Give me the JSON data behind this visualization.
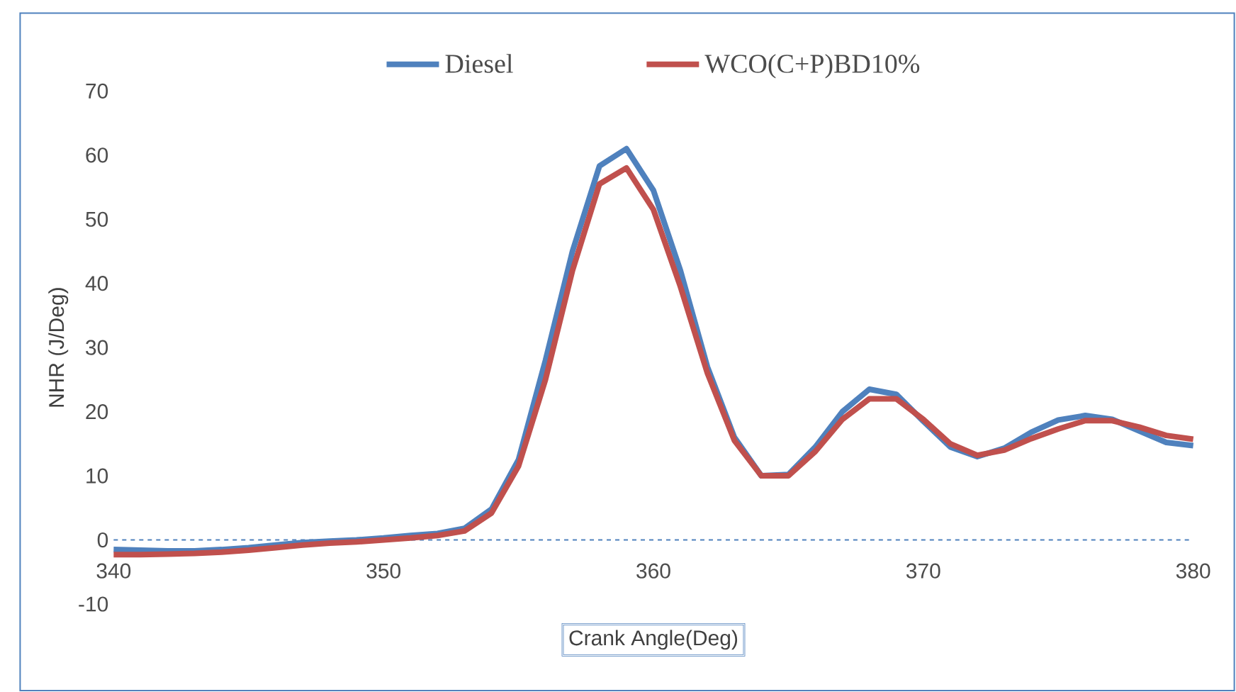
{
  "chart_data": {
    "type": "line",
    "xlabel": "Crank Angle(Deg)",
    "ylabel": "NHR (J/Deg)",
    "x": [
      340,
      341,
      342,
      343,
      344,
      345,
      346,
      347,
      348,
      349,
      350,
      351,
      352,
      353,
      354,
      355,
      356,
      357,
      358,
      359,
      360,
      361,
      362,
      363,
      364,
      365,
      366,
      367,
      368,
      369,
      370,
      371,
      372,
      373,
      374,
      375,
      376,
      377,
      378,
      379,
      380
    ],
    "series": [
      {
        "name": "Diesel",
        "color": "#4f81bd",
        "values": [
          -1.5,
          -1.6,
          -1.7,
          -1.7,
          -1.5,
          -1.2,
          -0.8,
          -0.4,
          -0.2,
          0,
          0.3,
          0.7,
          1.0,
          1.8,
          4.8,
          12.5,
          28,
          45,
          58.3,
          61,
          54.5,
          42,
          27,
          16,
          10,
          10.2,
          14.5,
          20,
          23.5,
          22.7,
          18.5,
          14.5,
          13,
          14.3,
          16.8,
          18.7,
          19.4,
          18.8,
          17,
          15.2,
          14.7
        ]
      },
      {
        "name": "WCO(C+P)BD10%",
        "color": "#c0504d",
        "values": [
          -2.3,
          -2.3,
          -2.2,
          -2.1,
          -1.9,
          -1.6,
          -1.2,
          -0.8,
          -0.5,
          -0.3,
          0,
          0.3,
          0.7,
          1.4,
          4.2,
          11.5,
          25,
          42,
          55.5,
          58,
          51.5,
          39.5,
          26,
          15.5,
          10,
          10,
          13.8,
          18.8,
          22,
          22,
          18.8,
          15,
          13.2,
          14,
          15.8,
          17.3,
          18.6,
          18.6,
          17.6,
          16.3,
          15.7
        ]
      }
    ],
    "xlim": [
      340,
      380
    ],
    "ylim": [
      -10,
      70
    ],
    "xticks": [
      340,
      350,
      360,
      370,
      380
    ],
    "yticks": [
      -10,
      0,
      10,
      20,
      30,
      40,
      50,
      60,
      70
    ],
    "legend": "top",
    "ref_lines": [
      {
        "axis": "y",
        "value": 0,
        "color": "#4f81bd",
        "line_style": "dashed"
      }
    ]
  }
}
